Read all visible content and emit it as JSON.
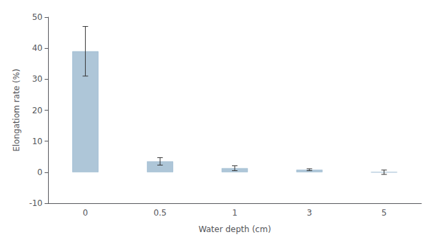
{
  "chart_data": {
    "type": "bar",
    "categories": [
      "0",
      "0.5",
      "1",
      "3",
      "5"
    ],
    "values": [
      39.0,
      3.5,
      1.3,
      0.8,
      0.0
    ],
    "errors": [
      8.0,
      1.2,
      0.8,
      0.3,
      0.7
    ],
    "color": "#aec6d8",
    "xlabel": "Water depth (cm)",
    "ylabel": "Elongatiom rate (%)",
    "ylim": [
      -10,
      50
    ],
    "yticks": [
      -10,
      0,
      10,
      20,
      30,
      40,
      50
    ],
    "grid": false
  }
}
